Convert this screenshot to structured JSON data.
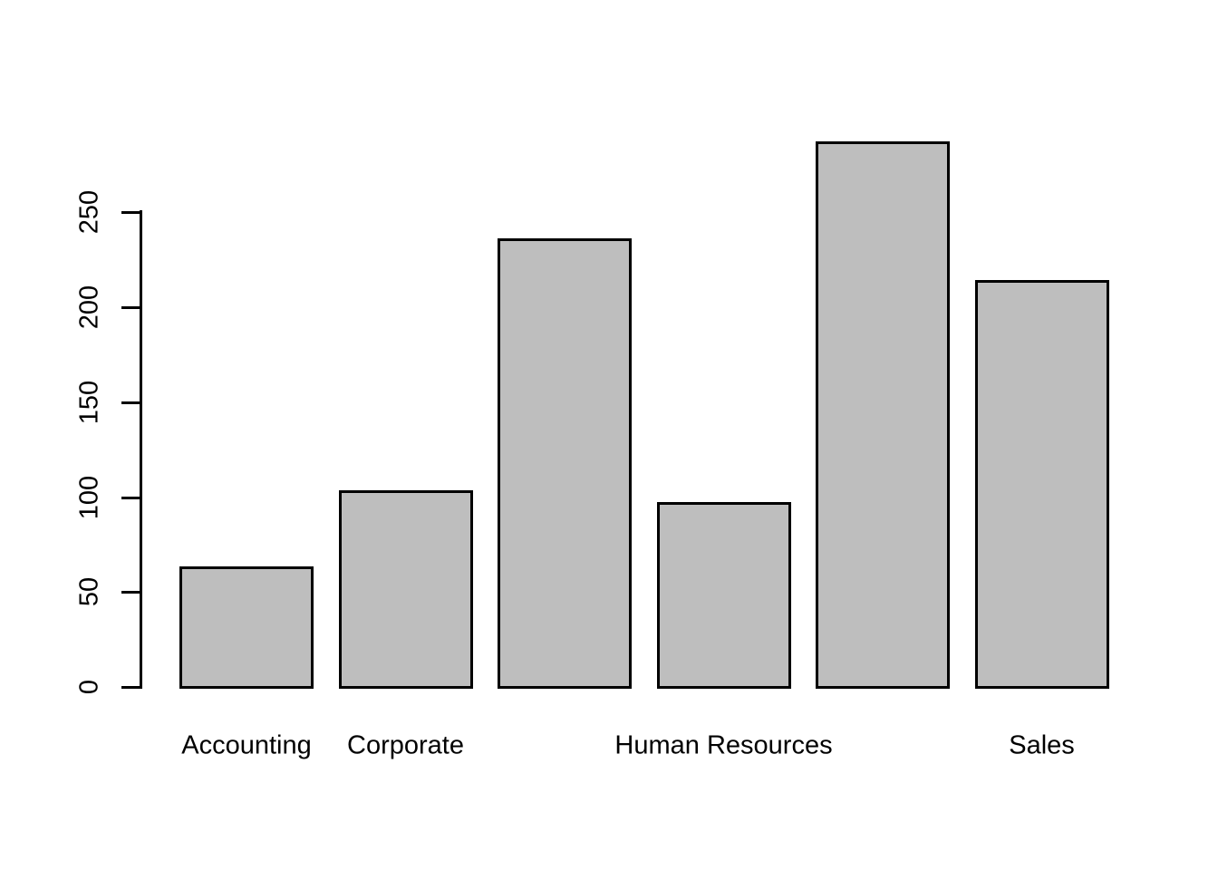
{
  "figure": {
    "background_color": "#FFFFFF"
  },
  "chart_data": {
    "type": "bar",
    "title": "",
    "xlabel": "",
    "ylabel": "",
    "categories": [
      "Accounting",
      "Corporate",
      "",
      "Human Resources",
      "",
      "Sales"
    ],
    "values": [
      63,
      103,
      236,
      97,
      287,
      214
    ],
    "y_ticks": [
      0,
      50,
      100,
      150,
      200,
      250
    ],
    "y_tick_labels": [
      "0",
      "50",
      "100",
      "150",
      "200",
      "250"
    ],
    "ylim": [
      0,
      300
    ],
    "grid": false,
    "legend": "none",
    "bar_fill_color": "#BEBEBE",
    "bar_border_color": "#000000",
    "axis_color": "#000000",
    "text_color": "#000000",
    "y_tick_label_orientation": "rotated-90-bottom-to-top"
  }
}
